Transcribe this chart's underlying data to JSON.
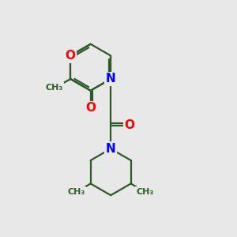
{
  "background_color": "#e8e8e8",
  "bond_color": "#2d5a27",
  "N_color": "#0000ff",
  "O_color": "#ff0000",
  "atom_bg": "#e8e8e8",
  "font_size": 11,
  "line_width": 1.6,
  "fig_size": [
    3.0,
    3.0
  ],
  "dpi": 100,
  "xlim": [
    0,
    10
  ],
  "ylim": [
    0,
    10
  ]
}
